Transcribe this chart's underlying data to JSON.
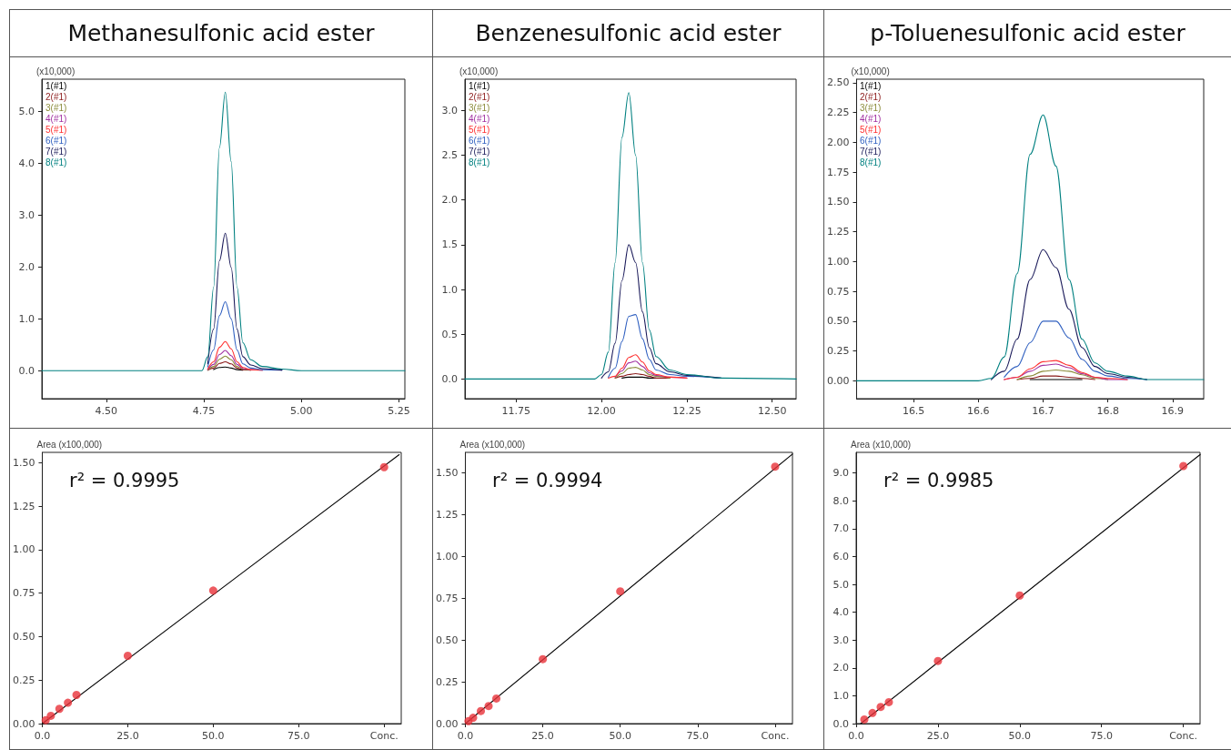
{
  "chart_data": [
    {
      "type": "line",
      "title": "Methanesulfonic acid ester",
      "ylabel": "(x10,000)",
      "legend": "top left",
      "marker": "none",
      "line_style": "solid",
      "grid": false,
      "xlim": [
        4.335,
        5.265
      ],
      "xticks": [
        {
          "value": 4.5,
          "label": "4.50"
        },
        4.75,
        {
          "value": 5,
          "label": "5.00"
        },
        5.25
      ],
      "ylim": [
        -0.54,
        5.62
      ],
      "yticks": [
        {
          "value": 0,
          "label": "0.0"
        },
        {
          "value": 1,
          "label": "1.0"
        },
        {
          "value": 2,
          "label": "2.0"
        },
        {
          "value": 3,
          "label": "3.0"
        },
        {
          "value": 4,
          "label": "4.0"
        },
        {
          "value": 5,
          "label": "5.0"
        }
      ],
      "x": [
        4.335,
        4.745,
        4.76,
        4.775,
        4.79,
        4.805,
        4.82,
        4.835,
        4.85,
        4.87,
        4.9,
        4.95,
        5.0,
        5.265
      ],
      "series": [
        {
          "name": "1(#1)",
          "color": "#000000",
          "values": [
            null,
            null,
            null,
            0.02,
            0.06,
            0.07,
            0.05,
            0.02,
            0.01,
            null,
            null,
            null,
            null,
            null
          ]
        },
        {
          "name": "2(#1)",
          "color": "#8b1a1a",
          "values": [
            null,
            null,
            0.01,
            0.05,
            0.14,
            0.17,
            0.13,
            0.05,
            0.02,
            0.01,
            null,
            null,
            null,
            null
          ]
        },
        {
          "name": "3(#1)",
          "color": "#8b8b3a",
          "values": [
            null,
            null,
            0.01,
            0.08,
            0.22,
            0.28,
            0.21,
            0.08,
            0.03,
            0.01,
            null,
            null,
            null,
            null
          ]
        },
        {
          "name": "4(#1)",
          "color": "#a030a0",
          "values": [
            null,
            null,
            0.02,
            0.12,
            0.31,
            0.39,
            0.29,
            0.12,
            0.04,
            0.02,
            0.01,
            null,
            null,
            null
          ]
        },
        {
          "name": "5(#1)",
          "color": "#ff3030",
          "values": [
            null,
            null,
            0.03,
            0.17,
            0.45,
            0.56,
            0.42,
            0.17,
            0.06,
            0.02,
            0.01,
            null,
            null,
            null
          ]
        },
        {
          "name": "6(#1)",
          "color": "#3060c0",
          "values": [
            null,
            null,
            0.07,
            0.4,
            1.06,
            1.33,
            1.0,
            0.4,
            0.13,
            0.05,
            0.02,
            0.01,
            null,
            null
          ]
        },
        {
          "name": "7(#1)",
          "color": "#1a1a5a",
          "values": [
            null,
            null,
            0.13,
            0.8,
            2.12,
            2.65,
            1.99,
            0.8,
            0.27,
            0.11,
            0.04,
            0.01,
            null,
            null
          ]
        },
        {
          "name": "8(#1)",
          "color": "#008080",
          "values": [
            0,
            0,
            0.27,
            1.61,
            4.3,
            5.37,
            4.03,
            1.61,
            0.54,
            0.21,
            0.08,
            0.03,
            0,
            0
          ]
        }
      ]
    },
    {
      "type": "line",
      "title": "Benzenesulfonic acid ester",
      "ylabel": "(x10,000)",
      "legend": "top left",
      "marker": "none",
      "line_style": "solid",
      "grid": false,
      "xlim": [
        11.6,
        12.57
      ],
      "xticks": [
        11.75,
        {
          "value": 12,
          "label": "12.00"
        },
        12.25,
        {
          "value": 12.5,
          "label": "12.50"
        }
      ],
      "ylim": [
        -0.22,
        3.35
      ],
      "yticks": [
        {
          "value": 0,
          "label": "0.0"
        },
        0.5,
        {
          "value": 1,
          "label": "1.0"
        },
        1.5,
        {
          "value": 2,
          "label": "2.0"
        },
        2.5,
        {
          "value": 3,
          "label": "3.0"
        }
      ],
      "x": [
        11.6,
        11.98,
        12.0,
        12.02,
        12.04,
        12.06,
        12.08,
        12.1,
        12.12,
        12.14,
        12.16,
        12.2,
        12.25,
        12.35,
        12.57
      ],
      "series": [
        {
          "name": "1(#1)",
          "color": "#000000",
          "values": [
            null,
            null,
            null,
            null,
            null,
            0.01,
            0.02,
            0.02,
            0.02,
            0.01,
            0.01,
            null,
            null,
            null,
            null
          ]
        },
        {
          "name": "2(#1)",
          "color": "#8b1a1a",
          "values": [
            null,
            null,
            null,
            null,
            0.01,
            0.03,
            0.05,
            0.06,
            0.05,
            0.03,
            0.01,
            0.01,
            null,
            null,
            null
          ]
        },
        {
          "name": "3(#1)",
          "color": "#8b8b3a",
          "values": [
            null,
            null,
            null,
            null,
            0.01,
            0.06,
            0.12,
            0.13,
            0.1,
            0.05,
            0.03,
            0.01,
            null,
            null,
            null
          ]
        },
        {
          "name": "4(#1)",
          "color": "#a030a0",
          "values": [
            null,
            null,
            null,
            null,
            0.02,
            0.09,
            0.18,
            0.2,
            0.14,
            0.07,
            0.04,
            0.02,
            0.01,
            null,
            null
          ]
        },
        {
          "name": "5(#1)",
          "color": "#ff3030",
          "values": [
            null,
            null,
            null,
            0.01,
            0.03,
            0.12,
            0.24,
            0.27,
            0.19,
            0.09,
            0.05,
            0.02,
            0.01,
            null,
            null
          ]
        },
        {
          "name": "6(#1)",
          "color": "#3060c0",
          "values": [
            null,
            null,
            null,
            0.02,
            0.12,
            0.42,
            0.7,
            0.72,
            0.45,
            0.22,
            0.1,
            0.05,
            0.03,
            0.01,
            null
          ]
        },
        {
          "name": "7(#1)",
          "color": "#1a1a5a",
          "values": [
            null,
            null,
            0.01,
            0.08,
            0.4,
            1.1,
            1.5,
            1.3,
            0.75,
            0.35,
            0.17,
            0.08,
            0.04,
            0.01,
            null
          ]
        },
        {
          "name": "8(#1)",
          "color": "#008080",
          "values": [
            0,
            0,
            0.05,
            0.3,
            1.3,
            2.7,
            3.2,
            2.5,
            1.3,
            0.55,
            0.25,
            0.1,
            0.05,
            0.01,
            0
          ]
        }
      ]
    },
    {
      "type": "line",
      "title": "p-Toluenesulfonic acid ester",
      "ylabel": "(x10,000)",
      "legend": "top left",
      "marker": "none",
      "line_style": "solid",
      "grid": false,
      "xlim": [
        16.412,
        16.948
      ],
      "xticks": [
        16.5,
        16.6,
        16.7,
        16.8,
        16.9
      ],
      "ylim": [
        -0.15,
        2.53
      ],
      "yticks": [
        {
          "value": 0,
          "label": "0.00"
        },
        0.25,
        {
          "value": 0.5,
          "label": "0.50"
        },
        0.75,
        {
          "value": 1,
          "label": "1.00"
        },
        1.25,
        {
          "value": 1.5,
          "label": "1.50"
        },
        1.75,
        {
          "value": 2,
          "label": "2.00"
        },
        2.25,
        {
          "value": 2.5,
          "label": "2.50"
        }
      ],
      "x": [
        16.412,
        16.6,
        16.62,
        16.64,
        16.66,
        16.68,
        16.7,
        16.72,
        16.74,
        16.76,
        16.78,
        16.8,
        16.83,
        16.86,
        16.948
      ],
      "series": [
        {
          "name": "1(#1)",
          "color": "#000000",
          "values": [
            null,
            null,
            null,
            null,
            null,
            0.01,
            0.01,
            0.01,
            0.01,
            0.01,
            null,
            null,
            null,
            null,
            null
          ]
        },
        {
          "name": "2(#1)",
          "color": "#8b1a1a",
          "values": [
            null,
            null,
            null,
            null,
            0.01,
            0.02,
            0.04,
            0.04,
            0.03,
            0.02,
            0.01,
            null,
            null,
            null,
            null
          ]
        },
        {
          "name": "3(#1)",
          "color": "#8b8b3a",
          "values": [
            null,
            null,
            null,
            null,
            0.01,
            0.04,
            0.08,
            0.09,
            0.08,
            0.05,
            0.02,
            0.01,
            null,
            null,
            null
          ]
        },
        {
          "name": "4(#1)",
          "color": "#a030a0",
          "values": [
            null,
            null,
            null,
            0.01,
            0.03,
            0.08,
            0.13,
            0.14,
            0.11,
            0.06,
            0.03,
            0.01,
            0.01,
            null,
            null
          ]
        },
        {
          "name": "5(#1)",
          "color": "#ff3030",
          "values": [
            null,
            null,
            null,
            0.01,
            0.03,
            0.1,
            0.16,
            0.17,
            0.13,
            0.07,
            0.03,
            0.02,
            0.01,
            null,
            null
          ]
        },
        {
          "name": "6(#1)",
          "color": "#3060c0",
          "values": [
            null,
            null,
            null,
            0.03,
            0.12,
            0.32,
            0.5,
            0.5,
            0.36,
            0.18,
            0.08,
            0.04,
            0.02,
            0.01,
            null
          ]
        },
        {
          "name": "7(#1)",
          "color": "#1a1a5a",
          "values": [
            null,
            null,
            0.01,
            0.08,
            0.35,
            0.85,
            1.1,
            0.95,
            0.6,
            0.28,
            0.12,
            0.06,
            0.03,
            0.01,
            null
          ]
        },
        {
          "name": "8(#1)",
          "color": "#008080",
          "values": [
            0,
            0,
            0.02,
            0.2,
            0.9,
            1.9,
            2.23,
            1.8,
            0.85,
            0.35,
            0.15,
            0.08,
            0.04,
            0.01,
            0.01
          ]
        }
      ]
    },
    {
      "type": "scatter",
      "ylabel": "Area (x100,000)",
      "marker": "circle",
      "grid": false,
      "annotations": [
        "r² = 0.9995"
      ],
      "xlim": [
        0,
        105
      ],
      "xticks": [
        {
          "value": 0,
          "label": "0.0"
        },
        {
          "value": 25,
          "label": "25.0"
        },
        {
          "value": 50,
          "label": "50.0"
        },
        {
          "value": 75,
          "label": "75.0"
        },
        {
          "value": 100,
          "label": "Conc."
        }
      ],
      "ylim": [
        0,
        1.56
      ],
      "yticks": [
        {
          "value": 0,
          "label": "0.00"
        },
        0.25,
        {
          "value": 0.5,
          "label": "0.50"
        },
        0.75,
        {
          "value": 1,
          "label": "1.00"
        },
        1.25,
        {
          "value": 1.5,
          "label": "1.50"
        }
      ],
      "series": [
        {
          "type": "line",
          "color": "#000000",
          "marker": "none",
          "x": [
            0,
            104.4
          ],
          "values": [
            0,
            1.547
          ]
        },
        {
          "color": "#e8323a",
          "x": [
            1,
            2.5,
            5,
            7.5,
            10,
            25,
            50,
            100
          ],
          "values": [
            0.02,
            0.045,
            0.085,
            0.12,
            0.165,
            0.39,
            0.765,
            1.475
          ]
        }
      ]
    },
    {
      "type": "scatter",
      "ylabel": "Area (x100,000)",
      "marker": "circle",
      "grid": false,
      "annotations": [
        "r² = 0.9994"
      ],
      "xlim": [
        0,
        105.6
      ],
      "xticks": [
        {
          "value": 0,
          "label": "0.0"
        },
        {
          "value": 25,
          "label": "25.0"
        },
        {
          "value": 50,
          "label": "50.0"
        },
        {
          "value": 75,
          "label": "75.0"
        },
        {
          "value": 100,
          "label": "Conc."
        }
      ],
      "ylim": [
        0,
        1.62
      ],
      "yticks": [
        {
          "value": 0,
          "label": "0.00"
        },
        0.25,
        {
          "value": 0.5,
          "label": "0.50"
        },
        0.75,
        {
          "value": 1,
          "label": "1.00"
        },
        1.25,
        {
          "value": 1.5,
          "label": "1.50"
        }
      ],
      "series": [
        {
          "type": "line",
          "color": "#000000",
          "marker": "none",
          "x": [
            0,
            105.6
          ],
          "values": [
            0,
            1.61
          ]
        },
        {
          "color": "#e8323a",
          "x": [
            1,
            2.5,
            5,
            7.5,
            10,
            25,
            50,
            100
          ],
          "values": [
            0.015,
            0.035,
            0.075,
            0.105,
            0.15,
            0.385,
            0.79,
            1.535
          ]
        }
      ]
    },
    {
      "type": "scatter",
      "ylabel": "Area (x10,000)",
      "marker": "circle",
      "grid": false,
      "annotations": [
        "r² = 0.9985"
      ],
      "xlim": [
        0,
        105.1
      ],
      "xticks": [
        {
          "value": 0,
          "label": "0.0"
        },
        {
          "value": 25,
          "label": "25.0"
        },
        {
          "value": 50,
          "label": "50.0"
        },
        {
          "value": 75,
          "label": "75.0"
        },
        {
          "value": 100,
          "label": "Conc."
        }
      ],
      "ylim": [
        0,
        9.74
      ],
      "yticks": [
        {
          "value": 0,
          "label": "0.0"
        },
        {
          "value": 1,
          "label": "1.0"
        },
        {
          "value": 2,
          "label": "2.0"
        },
        {
          "value": 3,
          "label": "3.0"
        },
        {
          "value": 4,
          "label": "4.0"
        },
        {
          "value": 5,
          "label": "5.0"
        },
        {
          "value": 6,
          "label": "6.0"
        },
        {
          "value": 7,
          "label": "7.0"
        },
        {
          "value": 8,
          "label": "8.0"
        },
        {
          "value": 9,
          "label": "9.0"
        }
      ],
      "series": [
        {
          "type": "line",
          "color": "#000000",
          "marker": "none",
          "x": [
            1.4,
            105.1
          ],
          "values": [
            0,
            9.66
          ]
        },
        {
          "color": "#e8323a",
          "x": [
            2.5,
            5,
            7.5,
            10,
            25,
            50,
            100
          ],
          "values": [
            0.15,
            0.38,
            0.6,
            0.77,
            2.25,
            4.6,
            9.25
          ]
        }
      ]
    }
  ]
}
